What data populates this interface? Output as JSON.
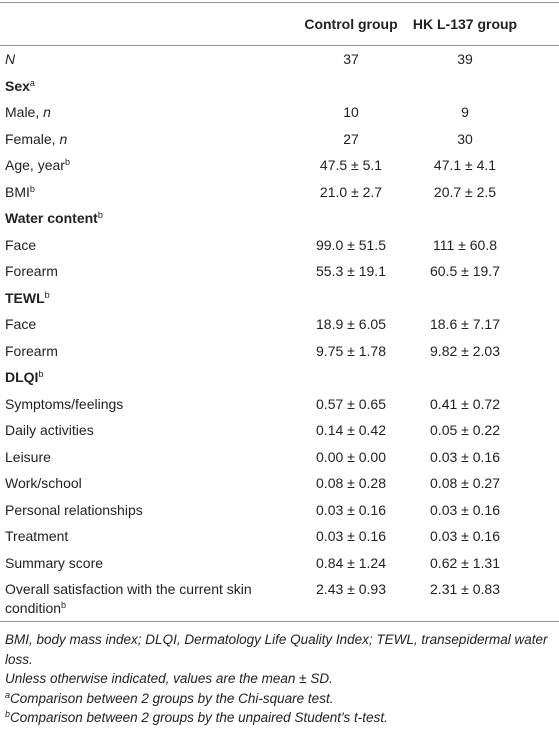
{
  "table": {
    "header": [
      "",
      "Control group",
      "HK L-137 group"
    ],
    "rows": [
      {
        "label_em": "N",
        "values": [
          "37",
          "39"
        ]
      },
      {
        "section": "Sex",
        "sup": "a"
      },
      {
        "label": "Male, ",
        "label_em": "n",
        "values": [
          "10",
          "9"
        ]
      },
      {
        "label": "Female, ",
        "label_em": "n",
        "values": [
          "27",
          "30"
        ]
      },
      {
        "label": "Age, year",
        "sup": "b",
        "values": [
          "47.5 ± 5.1",
          "47.1 ± 4.1"
        ]
      },
      {
        "label": "BMI",
        "sup": "b",
        "values": [
          "21.0 ± 2.7",
          "20.7 ± 2.5"
        ]
      },
      {
        "section": "Water content",
        "sup": "b"
      },
      {
        "label": "Face",
        "values": [
          "99.0 ± 51.5",
          "111 ± 60.8"
        ]
      },
      {
        "label": "Forearm",
        "values": [
          "55.3 ± 19.1",
          "60.5 ± 19.7"
        ]
      },
      {
        "section": "TEWL",
        "sup": "b"
      },
      {
        "label": "Face",
        "values": [
          "18.9 ± 6.05",
          "18.6 ± 7.17"
        ]
      },
      {
        "label": "Forearm",
        "values": [
          "9.75 ± 1.78",
          "9.82 ± 2.03"
        ]
      },
      {
        "section": "DLQI",
        "sup": "b"
      },
      {
        "label": "Symptoms/feelings",
        "values": [
          "0.57 ± 0.65",
          "0.41 ± 0.72"
        ]
      },
      {
        "label": "Daily activities",
        "values": [
          "0.14 ± 0.42",
          "0.05 ± 0.22"
        ]
      },
      {
        "label": "Leisure",
        "values": [
          "0.00 ± 0.00",
          "0.03 ± 0.16"
        ]
      },
      {
        "label": "Work/school",
        "values": [
          "0.08 ± 0.28",
          "0.08 ± 0.27"
        ]
      },
      {
        "label": "Personal relationships",
        "values": [
          "0.03 ± 0.16",
          "0.03 ± 0.16"
        ]
      },
      {
        "label": "Treatment",
        "values": [
          "0.03 ± 0.16",
          "0.03 ± 0.16"
        ]
      },
      {
        "label": "Summary score",
        "values": [
          "0.84 ± 1.24",
          "0.62 ± 1.31"
        ]
      },
      {
        "label": "Overall satisfaction with the current skin condition",
        "sup": "b",
        "values": [
          "2.43 ± 0.93",
          "2.31 ± 0.83"
        ]
      }
    ],
    "footnotes": [
      {
        "text": "BMI, body mass index; DLQI, Dermatology Life Quality Index; TEWL, transepidermal water loss."
      },
      {
        "text": "Unless otherwise indicated, values are the mean ± SD."
      },
      {
        "sup": "a",
        "text": "Comparison between 2 groups by the Chi-square test."
      },
      {
        "sup": "b",
        "text": "Comparison between 2 groups by the unpaired Student's t-test."
      }
    ]
  }
}
